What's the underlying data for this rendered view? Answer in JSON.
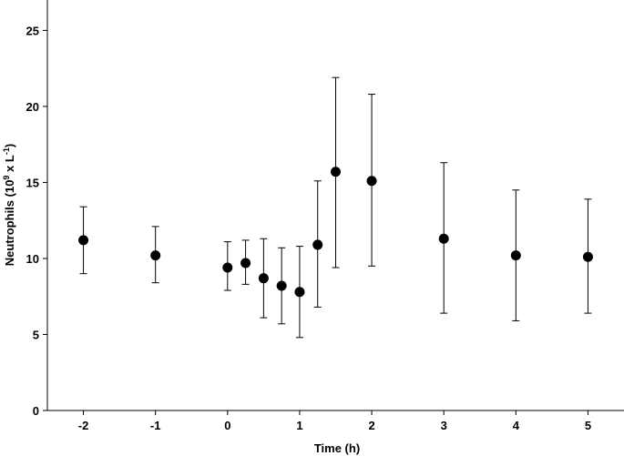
{
  "chart_data": {
    "type": "scatter",
    "title": "",
    "xlabel": "Time (h)",
    "ylabel_parts": {
      "prefix": "Neutrophils (10",
      "sup1": "9",
      "middle": " x L",
      "sup2": "-1",
      "suffix": ")"
    },
    "xticks": [
      "-2",
      "-1",
      "0",
      "1",
      "2",
      "3",
      "4",
      "5"
    ],
    "yticks": [
      "0",
      "5",
      "10",
      "15",
      "20",
      "25"
    ],
    "xlim": [
      -2.5,
      5.5
    ],
    "ylim": [
      0,
      27
    ],
    "grid": false,
    "legend": "none",
    "marker_color": "#000000",
    "points": [
      {
        "x": -2,
        "y": 11.2,
        "lo": 9.0,
        "hi": 13.4
      },
      {
        "x": -1,
        "y": 10.2,
        "lo": 8.4,
        "hi": 12.1
      },
      {
        "x": 0,
        "y": 9.4,
        "lo": 7.9,
        "hi": 11.1
      },
      {
        "x": 0.25,
        "y": 9.7,
        "lo": 8.3,
        "hi": 11.2
      },
      {
        "x": 0.5,
        "y": 8.7,
        "lo": 6.1,
        "hi": 11.3
      },
      {
        "x": 0.75,
        "y": 8.2,
        "lo": 5.7,
        "hi": 10.7
      },
      {
        "x": 1,
        "y": 7.8,
        "lo": 4.8,
        "hi": 10.8
      },
      {
        "x": 1.25,
        "y": 10.9,
        "lo": 6.8,
        "hi": 15.1
      },
      {
        "x": 1.5,
        "y": 15.7,
        "lo": 9.4,
        "hi": 21.9
      },
      {
        "x": 2,
        "y": 15.1,
        "lo": 9.5,
        "hi": 20.8
      },
      {
        "x": 3,
        "y": 11.3,
        "lo": 6.4,
        "hi": 16.3
      },
      {
        "x": 4,
        "y": 10.2,
        "lo": 5.9,
        "hi": 14.5
      },
      {
        "x": 5,
        "y": 10.1,
        "lo": 6.4,
        "hi": 13.9
      }
    ]
  }
}
